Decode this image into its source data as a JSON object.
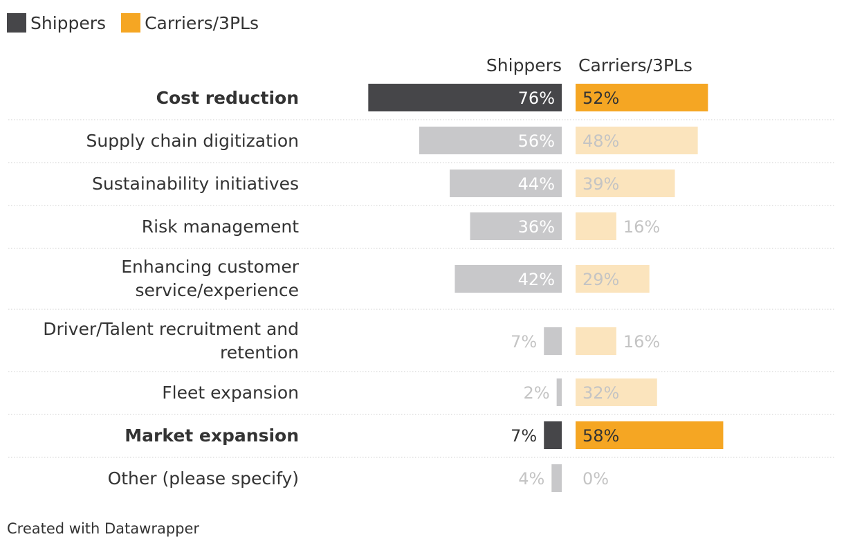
{
  "legend": [
    {
      "name": "Shippers",
      "color": "#464649"
    },
    {
      "name": "Carriers/3PLs",
      "color": "#f5a623"
    }
  ],
  "credit": "Created with Datawrapper",
  "chart_data": {
    "type": "bar",
    "orientation": "horizontal",
    "column_headers": [
      "Shippers",
      "Carriers/3PLs"
    ],
    "categories": [
      "Cost reduction",
      "Supply chain digitization",
      "Sustainability initiatives",
      "Risk management",
      "Enhancing customer service/experience",
      "Driver/Talent recruitment and retention",
      "Fleet expansion",
      "Market expansion",
      "Other (please specify)"
    ],
    "highlighted": [
      true,
      false,
      false,
      false,
      false,
      false,
      false,
      true,
      false
    ],
    "series": [
      {
        "name": "Shippers",
        "values": [
          76,
          56,
          44,
          36,
          42,
          7,
          2,
          7,
          4
        ]
      },
      {
        "name": "Carriers/3PLs",
        "values": [
          52,
          48,
          39,
          16,
          29,
          16,
          32,
          58,
          0
        ]
      }
    ],
    "value_suffix": "%",
    "colors": {
      "shippers_highlight": "#464649",
      "shippers_muted": "#c8c8ca",
      "carriers_highlight": "#f5a623",
      "carriers_muted": "#fbe4bd",
      "label_muted": "#c4c4c4",
      "label_dark": "#333333",
      "label_on_dark": "#ffffff"
    }
  }
}
